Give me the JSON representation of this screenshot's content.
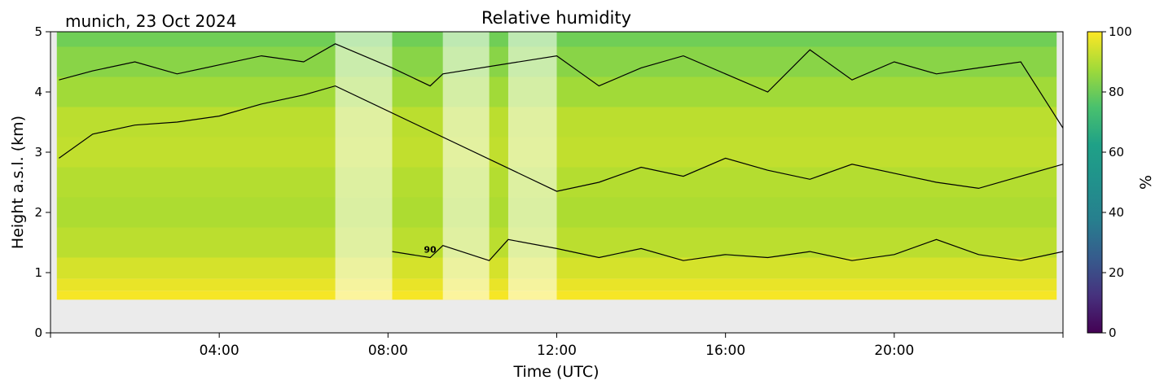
{
  "chart_data": {
    "type": "heatmap",
    "title": "Relative humidity",
    "site_label": "munich, 23 Oct 2024",
    "xlabel": "Time (UTC)",
    "ylabel": "Height a.s.l. (km)",
    "x_unit": "hours UTC",
    "xlim": [
      0,
      24
    ],
    "ylim": [
      0,
      5
    ],
    "x_ticks": [
      {
        "value": 4,
        "label": "04:00"
      },
      {
        "value": 8,
        "label": "08:00"
      },
      {
        "value": 12,
        "label": "12:00"
      },
      {
        "value": 16,
        "label": "16:00"
      },
      {
        "value": 20,
        "label": "20:00"
      }
    ],
    "y_ticks": [
      {
        "value": 0,
        "label": "0"
      },
      {
        "value": 1,
        "label": "1"
      },
      {
        "value": 2,
        "label": "2"
      },
      {
        "value": 3,
        "label": "3"
      },
      {
        "value": 4,
        "label": "4"
      },
      {
        "value": 5,
        "label": "5"
      }
    ],
    "colorbar": {
      "label": "%",
      "range": [
        0,
        100
      ],
      "colormap": "viridis",
      "ticks": [
        "0",
        "20",
        "40",
        "60",
        "80",
        "100"
      ]
    },
    "data_bottom_km": 0.55,
    "missing_color": "#ebebeb",
    "masked_periods_hours": [
      [
        6.75,
        8.1
      ],
      [
        9.3,
        10.4
      ],
      [
        10.85,
        12.0
      ]
    ],
    "contour_label": "90",
    "rh_profile": [
      {
        "height_km": 0.6,
        "rh": 99
      },
      {
        "height_km": 0.8,
        "rh": 97
      },
      {
        "height_km": 1.0,
        "rh": 94
      },
      {
        "height_km": 1.5,
        "rh": 90
      },
      {
        "height_km": 2.0,
        "rh": 88
      },
      {
        "height_km": 2.5,
        "rh": 89
      },
      {
        "height_km": 3.0,
        "rh": 91
      },
      {
        "height_km": 3.5,
        "rh": 90
      },
      {
        "height_km": 4.0,
        "rh": 86
      },
      {
        "height_km": 4.5,
        "rh": 82
      },
      {
        "height_km": 5.0,
        "rh": 78
      }
    ],
    "contours": [
      {
        "name": "upper",
        "x": [
          0.2,
          1,
          2,
          3,
          4,
          5,
          6,
          6.75,
          8.1,
          9,
          9.3,
          12,
          13,
          14,
          15,
          16,
          17,
          18,
          19,
          20,
          21,
          22,
          23,
          24
        ],
        "y": [
          4.2,
          4.35,
          4.5,
          4.3,
          4.45,
          4.6,
          4.5,
          4.8,
          4.4,
          4.1,
          4.3,
          4.6,
          4.1,
          4.4,
          4.6,
          4.3,
          4.0,
          4.7,
          4.2,
          4.5,
          4.3,
          4.4,
          4.5,
          3.4
        ]
      },
      {
        "name": "middle",
        "x": [
          0.2,
          1,
          2,
          3,
          4,
          5,
          6,
          6.75,
          12,
          13,
          14,
          15,
          16,
          17,
          18,
          19,
          20,
          21,
          22,
          23,
          24
        ],
        "y": [
          2.9,
          3.3,
          3.45,
          3.5,
          3.6,
          3.8,
          3.95,
          4.1,
          2.35,
          2.5,
          2.75,
          2.6,
          2.9,
          2.7,
          2.55,
          2.8,
          2.65,
          2.5,
          2.4,
          2.6,
          2.8
        ]
      },
      {
        "name": "lower",
        "x": [
          8.1,
          9,
          9.3,
          10.4,
          10.85,
          12,
          13,
          14,
          15,
          16,
          17,
          18,
          19,
          20,
          21,
          22,
          23,
          24
        ],
        "y": [
          1.35,
          1.25,
          1.45,
          1.2,
          1.55,
          1.4,
          1.25,
          1.4,
          1.2,
          1.3,
          1.25,
          1.35,
          1.2,
          1.3,
          1.55,
          1.3,
          1.2,
          1.35
        ]
      }
    ]
  }
}
